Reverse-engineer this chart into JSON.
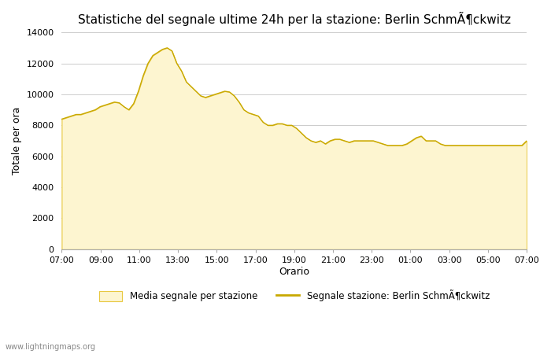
{
  "title": "Statistiche del segnale ultime 24h per la stazione: Berlin SchmÃ¶ckwitz",
  "xlabel": "Orario",
  "ylabel": "Totale per ora",
  "xlabels": [
    "07:00",
    "09:00",
    "11:00",
    "13:00",
    "15:00",
    "17:00",
    "19:00",
    "21:00",
    "23:00",
    "01:00",
    "03:00",
    "05:00",
    "07:00"
  ],
  "ylim": [
    0,
    14000
  ],
  "yticks": [
    0,
    2000,
    4000,
    6000,
    8000,
    10000,
    12000,
    14000
  ],
  "fill_color": "#fdf5d0",
  "fill_edge_color": "#e8c840",
  "line_color": "#c8a800",
  "watermark": "www.lightningmaps.org",
  "legend_fill": "Media segnale per stazione",
  "legend_line": "Segnale stazione: Berlin SchmÃ¶ckwitz",
  "y_values": [
    8400,
    8500,
    8600,
    8700,
    8700,
    8800,
    8900,
    9000,
    9200,
    9300,
    9400,
    9500,
    9450,
    9200,
    9000,
    9400,
    10200,
    11200,
    12000,
    12500,
    12700,
    12900,
    13000,
    12800,
    12000,
    11500,
    10800,
    10500,
    10200,
    9900,
    9800,
    9900,
    10000,
    10100,
    10200,
    10150,
    9900,
    9500,
    9000,
    8800,
    8700,
    8600,
    8200,
    8000,
    8000,
    8100,
    8100,
    8000,
    8000,
    7800,
    7500,
    7200,
    7000,
    6900,
    7000,
    6800,
    7000,
    7100,
    7100,
    7000,
    6900,
    7000,
    7000,
    7000,
    7000,
    7000,
    6900,
    6800,
    6700,
    6700,
    6700,
    6700,
    6800,
    7000,
    7200,
    7300,
    7000,
    7000,
    7000,
    6800,
    6700,
    6700,
    6700,
    6700,
    6700,
    6700,
    6700,
    6700,
    6700,
    6700,
    6700,
    6700,
    6700,
    6700,
    6700,
    6700,
    6700,
    7000
  ]
}
